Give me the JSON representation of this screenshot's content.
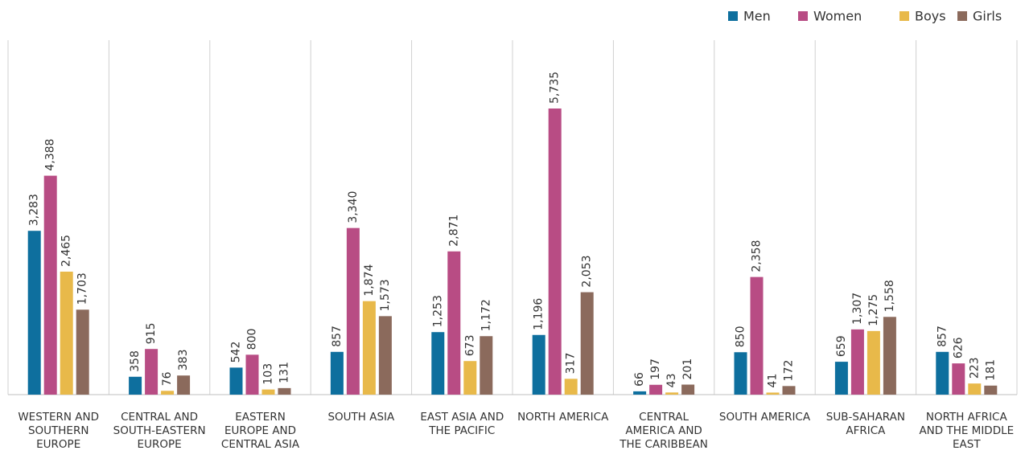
{
  "chart_data": {
    "type": "bar",
    "categories": [
      "WESTERN AND SOUTHERN EUROPE",
      "CENTRAL AND SOUTH-EASTERN EUROPE",
      "EASTERN EUROPE AND CENTRAL ASIA",
      "SOUTH ASIA",
      "EAST ASIA AND THE PACIFIC",
      "NORTH AMERICA",
      "CENTRAL AMERICA AND THE CARIBBEAN",
      "SOUTH AMERICA",
      "SUB-SAHARAN AFRICA",
      "NORTH AFRICA AND THE MIDDLE EAST"
    ],
    "series": [
      {
        "name": "Men",
        "color": "#0e6f9e",
        "values": [
          3283,
          358,
          542,
          857,
          1253,
          1196,
          66,
          850,
          659,
          857
        ],
        "value_labels": [
          "3,283",
          "358",
          "542",
          "857",
          "1,253",
          "1,196",
          "66",
          "850",
          "659",
          "857"
        ]
      },
      {
        "name": "Women",
        "color": "#b84c84",
        "values": [
          4388,
          915,
          800,
          3340,
          2871,
          5735,
          197,
          2358,
          1307,
          626
        ],
        "value_labels": [
          "4,388",
          "915",
          "800",
          "3,340",
          "2,871",
          "5,735",
          "197",
          "2,358",
          "1,307",
          "626"
        ]
      },
      {
        "name": "Boys",
        "color": "#e8b94a",
        "values": [
          2465,
          76,
          103,
          1874,
          673,
          317,
          43,
          41,
          1275,
          223
        ],
        "value_labels": [
          "2,465",
          "76",
          "103",
          "1,874",
          "673",
          "317",
          "43",
          "41",
          "1,275",
          "223"
        ]
      },
      {
        "name": "Girls",
        "color": "#8b6a5c",
        "values": [
          1703,
          383,
          131,
          1573,
          1172,
          2053,
          201,
          172,
          1558,
          181
        ],
        "value_labels": [
          "1,703",
          "383",
          "131",
          "1,573",
          "1,172",
          "2,053",
          "201",
          "172",
          "1,558",
          "181"
        ]
      }
    ],
    "legend": "top-right"
  }
}
